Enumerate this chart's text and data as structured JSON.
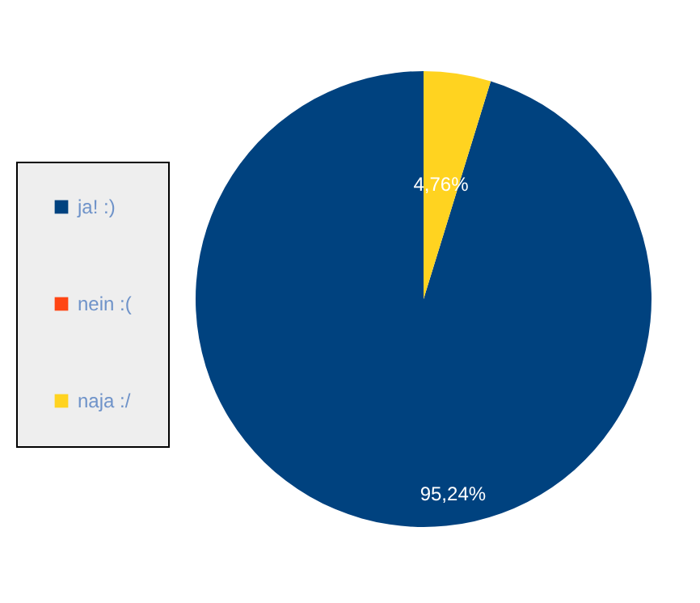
{
  "chart_data": {
    "type": "pie",
    "categories": [
      "ja! :)",
      "nein :(",
      "naja :/"
    ],
    "values": [
      95.24,
      0,
      4.76
    ],
    "colors": [
      "#00427f",
      "#ff4513",
      "#ffd320"
    ],
    "value_labels": [
      "95,24%",
      null,
      "4,76%"
    ],
    "legend": "left"
  }
}
